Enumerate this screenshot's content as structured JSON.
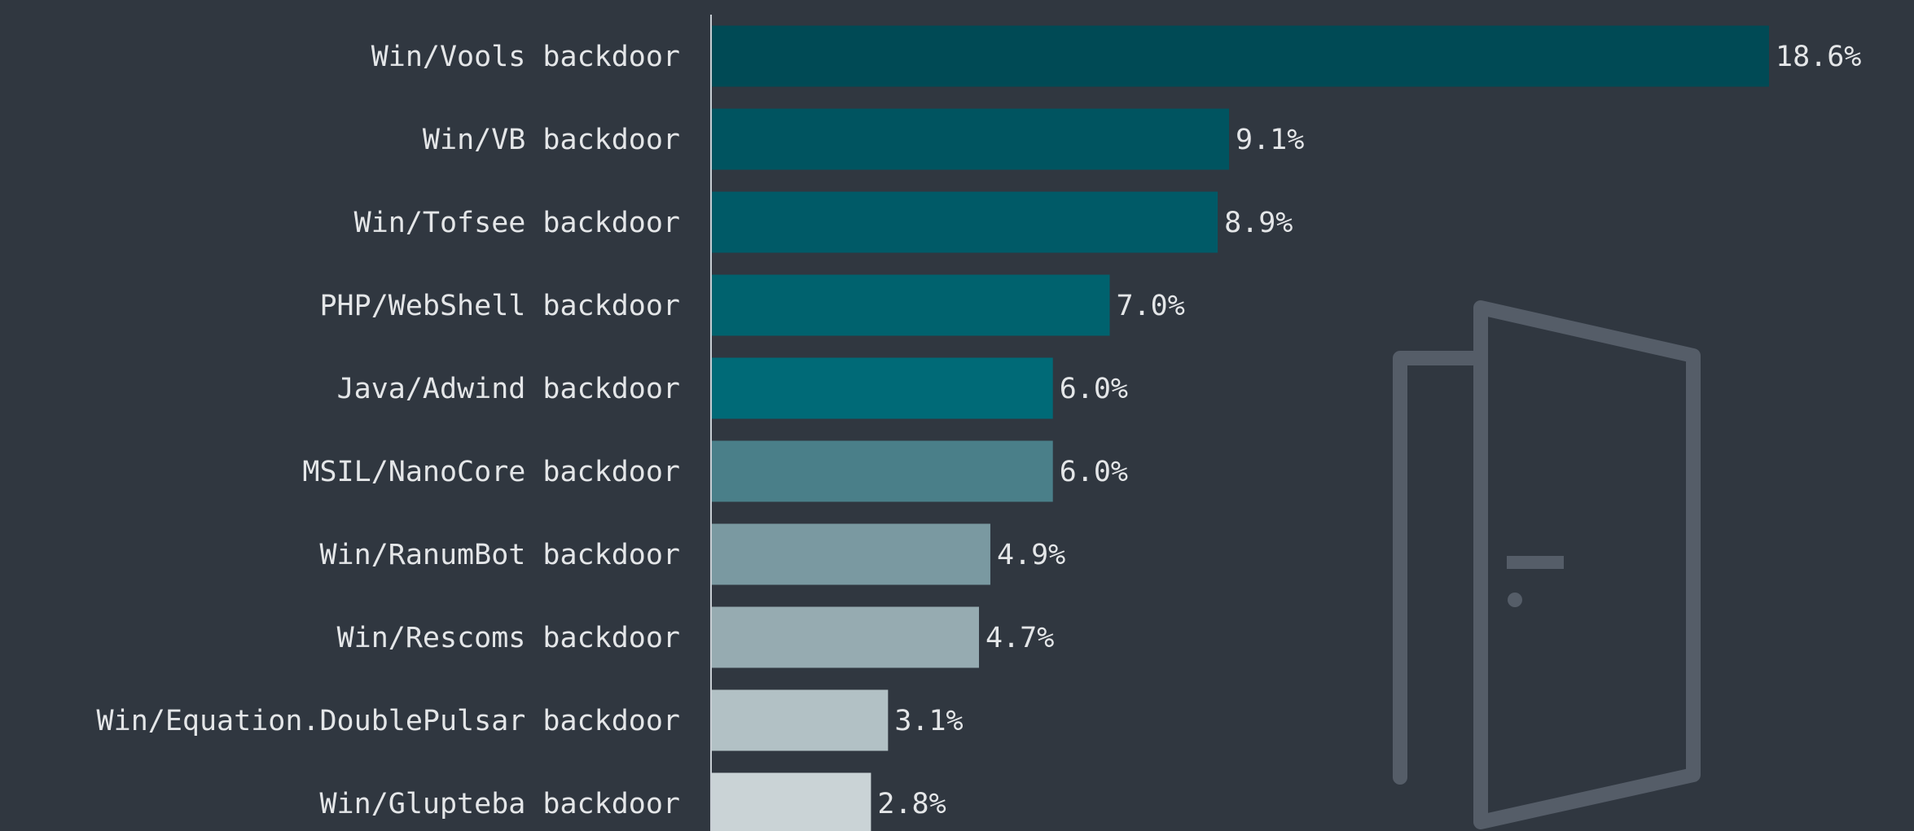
{
  "chart_data": {
    "type": "bar",
    "orientation": "horizontal",
    "categories": [
      "Win/Vools backdoor",
      "Win/VB backdoor",
      "Win/Tofsee backdoor",
      "PHP/WebShell backdoor",
      "Java/Adwind backdoor",
      "MSIL/NanoCore backdoor",
      "Win/RanumBot backdoor",
      "Win/Rescoms backdoor",
      "Win/Equation.DoublePulsar backdoor",
      "Win/Glupteba backdoor"
    ],
    "values": [
      18.6,
      9.1,
      8.9,
      7.0,
      6.0,
      6.0,
      4.9,
      4.7,
      3.1,
      2.8
    ],
    "value_labels": [
      "18.6%",
      "9.1%",
      "8.9%",
      "7.0%",
      "6.0%",
      "6.0%",
      "4.9%",
      "4.7%",
      "3.1%",
      "2.8%"
    ],
    "colors": [
      "#004a55",
      "#005460",
      "#005a67",
      "#00626e",
      "#006a77",
      "#4a7f89",
      "#7a99a1",
      "#96abb1",
      "#b2c1c5",
      "#cad3d6"
    ]
  }
}
